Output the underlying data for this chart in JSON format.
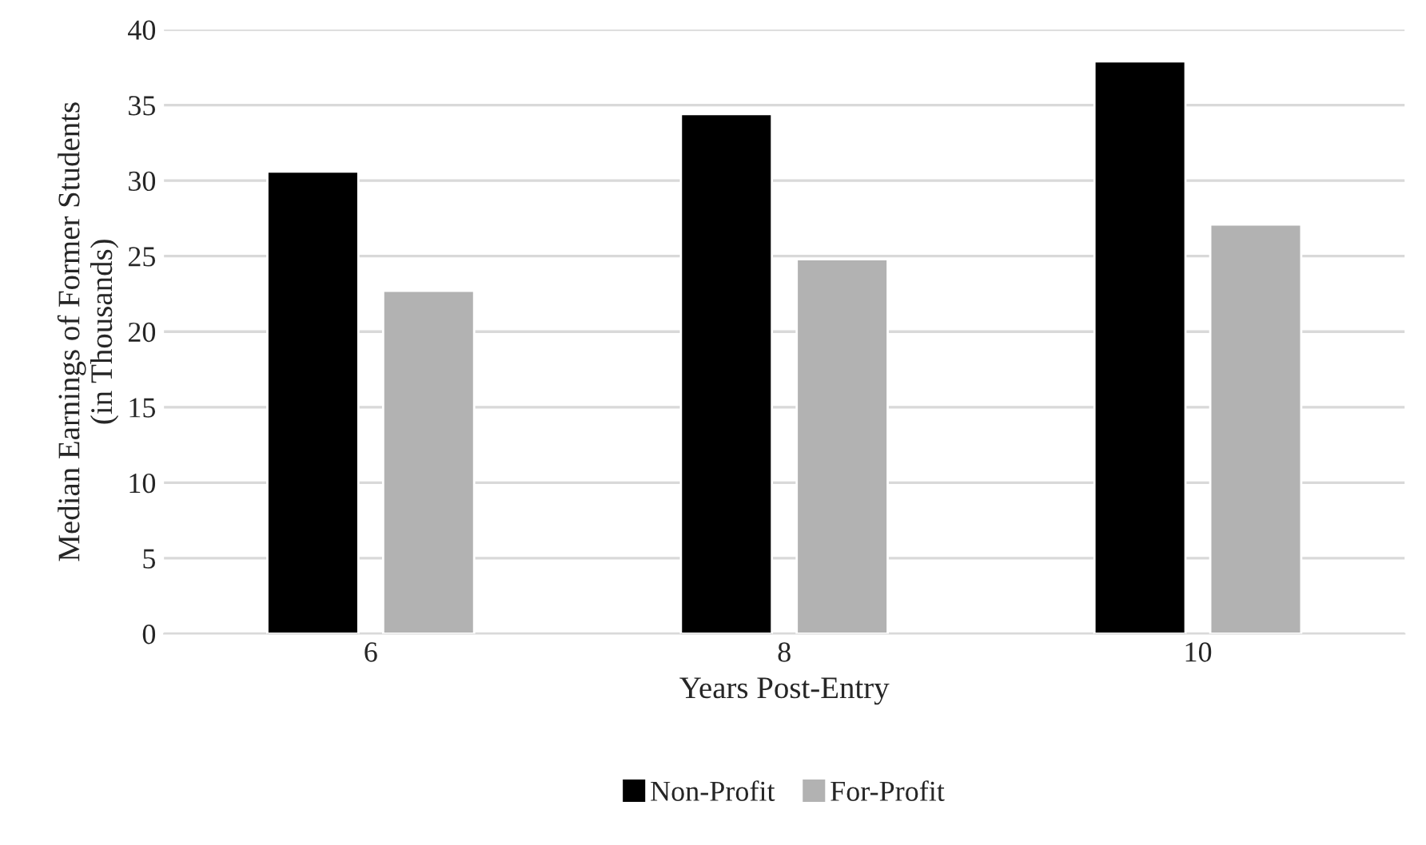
{
  "chart_data": {
    "type": "bar",
    "xlabel": "Years Post-Entry",
    "ylabel": "Median Earnings of Former Students\n(in Thousands)",
    "categories": [
      "6",
      "8",
      "10"
    ],
    "series": [
      {
        "name": "Non-Profit",
        "color": "#000000",
        "values": [
          30.6,
          34.4,
          37.9
        ]
      },
      {
        "name": "For-Profit",
        "color": "#b2b2b2",
        "values": [
          22.7,
          24.8,
          27.1
        ]
      }
    ],
    "ylim": [
      0,
      40
    ],
    "yticks": [
      0,
      5,
      10,
      15,
      20,
      25,
      30,
      35,
      40
    ],
    "grid": "y",
    "legend": "bottom"
  }
}
